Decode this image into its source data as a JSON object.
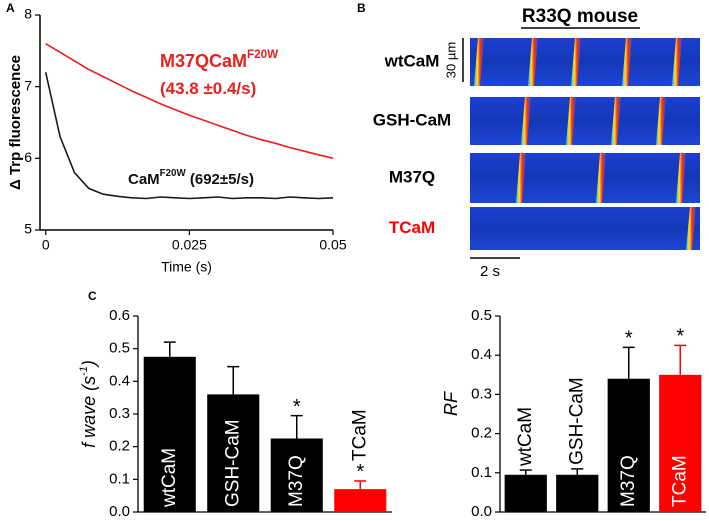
{
  "chart_data": [
    {
      "type": "line",
      "panel": "A",
      "x": [
        0,
        0.0025,
        0.005,
        0.0075,
        0.01,
        0.0125,
        0.015,
        0.0175,
        0.02,
        0.0225,
        0.025,
        0.0275,
        0.03,
        0.0325,
        0.035,
        0.0375,
        0.04,
        0.0425,
        0.045,
        0.0475,
        0.05
      ],
      "series": [
        {
          "name": "M37QCaM",
          "color": "#e8201f",
          "values": [
            7.6,
            7.48,
            7.36,
            7.24,
            7.14,
            7.04,
            6.94,
            6.85,
            6.76,
            6.68,
            6.6,
            6.53,
            6.46,
            6.39,
            6.32,
            6.26,
            6.21,
            6.15,
            6.1,
            6.05,
            6.0
          ]
        },
        {
          "name": "CaM",
          "color": "#1a1a1a",
          "values": [
            7.2,
            6.3,
            5.8,
            5.58,
            5.5,
            5.47,
            5.45,
            5.44,
            5.46,
            5.45,
            5.44,
            5.45,
            5.46,
            5.44,
            5.45,
            5.45,
            5.44,
            5.46,
            5.45,
            5.44,
            5.45
          ]
        }
      ],
      "annotations": [
        {
          "text": "M37QCaM",
          "sup": "F20W",
          "color": "#e8201f"
        },
        {
          "text": "(43.8 ±0.4/s)",
          "color": "#e8201f"
        },
        {
          "text": "CaM",
          "sup": "F20W",
          "tail": " (692±5/s)",
          "color": "#111111"
        }
      ],
      "xlabel": "Time (s)",
      "ylabel": "Δ Trp fluorescence",
      "xlim": [
        -0.001,
        0.05
      ],
      "xticks": [
        0,
        0.025,
        0.05
      ],
      "ylim": [
        5,
        8
      ],
      "yticks": [
        5,
        6,
        7,
        8
      ]
    },
    {
      "type": "bar",
      "panel": "C",
      "categories": [
        "wtCaM",
        "GSH-CaM",
        "M37Q",
        "TCaM"
      ],
      "values": [
        0.475,
        0.36,
        0.225,
        0.07
      ],
      "errors": [
        0.045,
        0.085,
        0.07,
        0.025
      ],
      "colors": [
        "#000000",
        "#000000",
        "#000000",
        "#ff0000"
      ],
      "significance": [
        null,
        null,
        "*",
        "*"
      ],
      "ylabel": "f wave (s",
      "ylabel_sup": "-1",
      "ylabel_tail": ")",
      "ylim": [
        0,
        0.6
      ],
      "yticks": [
        {
          "value": 0,
          "label": "0.0"
        },
        {
          "value": 0.1,
          "label": "0.1"
        },
        {
          "value": 0.2,
          "label": "0.2"
        },
        {
          "value": 0.3,
          "label": "0.3"
        },
        {
          "value": 0.4,
          "label": "0.4"
        },
        {
          "value": 0.5,
          "label": "0.5"
        },
        {
          "value": 0.6,
          "label": "0.6"
        }
      ]
    },
    {
      "type": "bar",
      "categories": [
        "wtCaM",
        "GSH-CaM",
        "M37Q",
        "TCaM"
      ],
      "values": [
        0.095,
        0.095,
        0.34,
        0.35
      ],
      "errors": [
        0.012,
        0.015,
        0.08,
        0.075
      ],
      "colors": [
        "#000000",
        "#000000",
        "#000000",
        "#ff0000"
      ],
      "significance": [
        null,
        null,
        "*",
        "*"
      ],
      "ylabel": "RF",
      "ylim": [
        0,
        0.5
      ],
      "yticks": [
        {
          "value": 0,
          "label": "0.0"
        },
        {
          "value": 0.1,
          "label": "0.1"
        },
        {
          "value": 0.2,
          "label": "0.2"
        },
        {
          "value": 0.3,
          "label": "0.3"
        },
        {
          "value": 0.4,
          "label": "0.4"
        },
        {
          "value": 0.5,
          "label": "0.5"
        }
      ]
    }
  ],
  "panel_b": {
    "label": "B",
    "title": "R33Q mouse",
    "rows": [
      {
        "label": "wtCaM",
        "color": "#000000"
      },
      {
        "label": "GSH-CaM",
        "color": "#000000"
      },
      {
        "label": "M37Q",
        "color": "#000000"
      },
      {
        "label": "TCaM",
        "color": "#ff0000"
      }
    ],
    "scale_y": "30 µm",
    "scale_x": "2 s"
  }
}
